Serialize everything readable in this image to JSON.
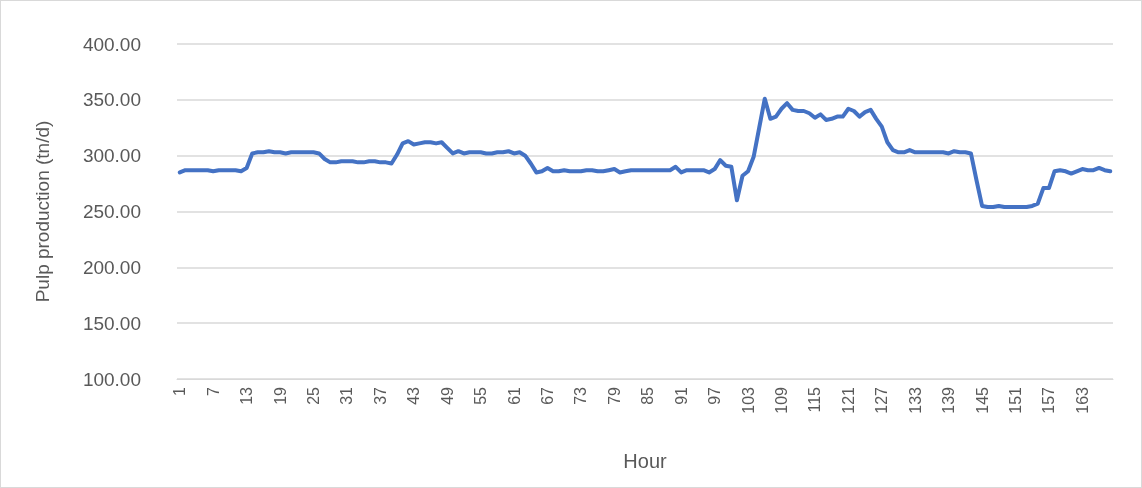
{
  "chart_data": {
    "type": "line",
    "xlabel": "Hour",
    "ylabel": "Pulp production (tn/d)",
    "categories": [
      "1",
      null,
      null,
      null,
      null,
      null,
      "7",
      null,
      null,
      null,
      null,
      null,
      "13",
      null,
      null,
      null,
      null,
      null,
      "19",
      null,
      null,
      null,
      null,
      null,
      "25",
      null,
      null,
      null,
      null,
      null,
      "31",
      null,
      null,
      null,
      null,
      null,
      "37",
      null,
      null,
      null,
      null,
      null,
      "43",
      null,
      null,
      null,
      null,
      null,
      "49",
      null,
      null,
      null,
      null,
      null,
      "55",
      null,
      null,
      null,
      null,
      null,
      "61",
      null,
      null,
      null,
      null,
      null,
      "67",
      null,
      null,
      null,
      null,
      null,
      "73",
      null,
      null,
      null,
      null,
      null,
      "79",
      null,
      null,
      null,
      null,
      null,
      "85",
      null,
      null,
      null,
      null,
      null,
      "91",
      null,
      null,
      null,
      null,
      null,
      "97",
      null,
      null,
      null,
      null,
      null,
      "103",
      null,
      null,
      null,
      null,
      null,
      "109",
      null,
      null,
      null,
      null,
      null,
      "115",
      null,
      null,
      null,
      null,
      null,
      "121",
      null,
      null,
      null,
      null,
      null,
      "127",
      null,
      null,
      null,
      null,
      null,
      "133",
      null,
      null,
      null,
      null,
      null,
      "139",
      null,
      null,
      null,
      null,
      null,
      "145",
      null,
      null,
      null,
      null,
      null,
      "151",
      null,
      null,
      null,
      null,
      null,
      "157",
      null,
      null,
      null,
      null,
      null,
      "163",
      null,
      null,
      null,
      null,
      null
    ],
    "series": [
      {
        "color": "#4472c4",
        "values": [
          285,
          287,
          287,
          287,
          287,
          287,
          286,
          287,
          287,
          287,
          287,
          286,
          289,
          302,
          303,
          303,
          304,
          303,
          303,
          302,
          303,
          303,
          303,
          303,
          303,
          302,
          297,
          294,
          294,
          295,
          295,
          295,
          294,
          294,
          295,
          295,
          294,
          294,
          293,
          301,
          311,
          313,
          310,
          311,
          312,
          312,
          311,
          312,
          307,
          302,
          304,
          302,
          303,
          303,
          303,
          302,
          302,
          303,
          303,
          304,
          302,
          303,
          300,
          293,
          285,
          286,
          289,
          286,
          286,
          287,
          286,
          286,
          286,
          287,
          287,
          286,
          286,
          287,
          288,
          285,
          286,
          287,
          287,
          287,
          287,
          287,
          287,
          287,
          287,
          290,
          285,
          287,
          287,
          287,
          287,
          285,
          288,
          296,
          291,
          290,
          260,
          282,
          286,
          299,
          325,
          351,
          333,
          335,
          342,
          347,
          341,
          340,
          340,
          338,
          334,
          337,
          332,
          333,
          335,
          335,
          342,
          340,
          335,
          339,
          341,
          333,
          326,
          312,
          305,
          303,
          303,
          305,
          303,
          303,
          303,
          303,
          303,
          303,
          302,
          304,
          303,
          303,
          302,
          278,
          255,
          254,
          254,
          255,
          254,
          254,
          254,
          254,
          254,
          255,
          257,
          271,
          271,
          286,
          287,
          286,
          284,
          286,
          288,
          287,
          287,
          289,
          287,
          286
        ]
      }
    ],
    "ylim": [
      100,
      400
    ],
    "yticks": [
      {
        "value": 100,
        "label": "100.00"
      },
      {
        "value": 150,
        "label": "150.00"
      },
      {
        "value": 200,
        "label": "200.00"
      },
      {
        "value": 250,
        "label": "250.00"
      },
      {
        "value": 300,
        "label": "300.00"
      },
      {
        "value": 350,
        "label": "350.00"
      },
      {
        "value": 400,
        "label": "400.00"
      }
    ],
    "grid": "y",
    "marker": "none",
    "line_style": "solid"
  }
}
